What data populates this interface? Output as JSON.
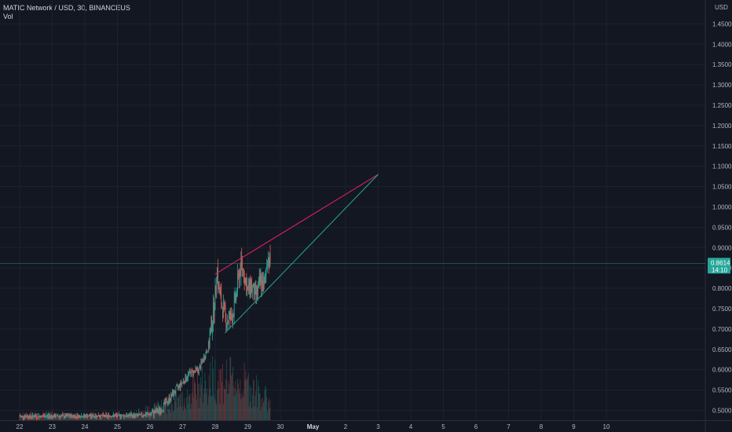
{
  "header": {
    "symbol_line": "MATIC Network / USD, 30, BINANCEUS",
    "indicator": "Vol"
  },
  "currency": "USD",
  "price_label": {
    "price": "0.8614",
    "countdown": "14:10"
  },
  "colors": {
    "background": "#131722",
    "grid": "#1e222d",
    "up": "#26a69a",
    "down": "#ef5350",
    "upper_trendline": "#e91e63",
    "lower_trendline": "#26a69a",
    "price_line": "#26a69a",
    "axis_text": "#b2b5be"
  },
  "chart_data": {
    "type": "candlestick",
    "y_ticks": [
      "1.4500",
      "1.4000",
      "1.3500",
      "1.3000",
      "1.2500",
      "1.2000",
      "1.1500",
      "1.1000",
      "1.0500",
      "1.0000",
      "0.9500",
      "0.9000",
      "0.8500",
      "0.8000",
      "0.7500",
      "0.7000",
      "0.6500",
      "0.6000",
      "0.5500",
      "0.5000"
    ],
    "x_ticks": [
      "22",
      "23",
      "24",
      "25",
      "26",
      "27",
      "28",
      "29",
      "30",
      "May",
      "2",
      "3",
      "4",
      "5",
      "6",
      "7",
      "8",
      "9",
      "10"
    ],
    "x_tick_days": [
      22,
      23,
      24,
      25,
      26,
      27,
      28,
      29,
      30,
      31,
      32,
      33,
      34,
      35,
      36,
      37,
      38,
      39,
      40
    ],
    "ylim": [
      0.47,
      1.47
    ],
    "last_price": 0.8614,
    "trendlines": [
      {
        "name": "upper",
        "from": [
          28.0,
          0.835
        ],
        "to": [
          33.0,
          1.08
        ]
      },
      {
        "name": "lower",
        "from": [
          28.3,
          0.69
        ],
        "to": [
          33.0,
          1.08
        ]
      }
    ],
    "price_path": [
      [
        22.0,
        0.485
      ],
      [
        25.5,
        0.487
      ],
      [
        26.0,
        0.49
      ],
      [
        26.3,
        0.5
      ],
      [
        26.6,
        0.53
      ],
      [
        26.9,
        0.56
      ],
      [
        27.2,
        0.59
      ],
      [
        27.5,
        0.6
      ],
      [
        27.8,
        0.66
      ],
      [
        28.0,
        0.78
      ],
      [
        28.05,
        0.86
      ],
      [
        28.1,
        0.8
      ],
      [
        28.2,
        0.76
      ],
      [
        28.35,
        0.72
      ],
      [
        28.5,
        0.73
      ],
      [
        28.6,
        0.76
      ],
      [
        28.7,
        0.82
      ],
      [
        28.8,
        0.86
      ],
      [
        28.9,
        0.83
      ],
      [
        29.0,
        0.79
      ],
      [
        29.1,
        0.81
      ],
      [
        29.2,
        0.78
      ],
      [
        29.3,
        0.79
      ],
      [
        29.4,
        0.82
      ],
      [
        29.5,
        0.8
      ],
      [
        29.6,
        0.88
      ],
      [
        29.7,
        0.86
      ]
    ],
    "volume_by_day": [
      [
        22,
        0.1
      ],
      [
        23,
        0.12
      ],
      [
        24,
        0.08
      ],
      [
        25,
        0.07
      ],
      [
        26,
        0.2
      ],
      [
        27,
        0.4
      ],
      [
        28,
        0.85
      ],
      [
        29,
        0.7
      ],
      [
        29.7,
        0.35
      ]
    ]
  }
}
